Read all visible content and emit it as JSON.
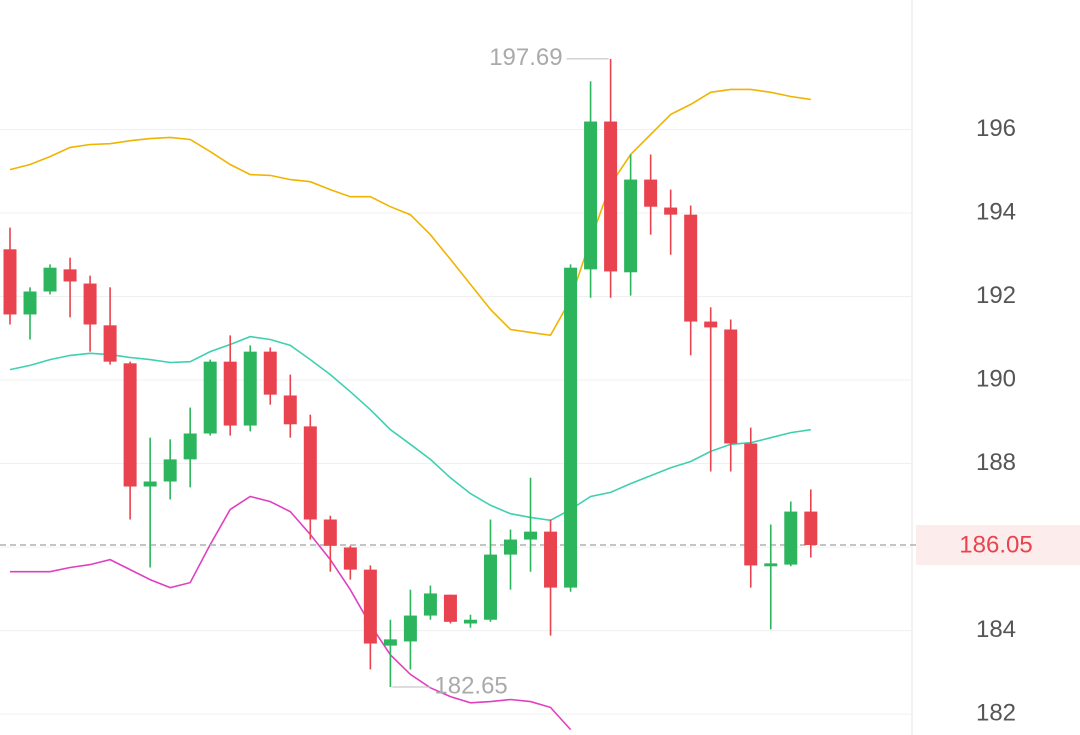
{
  "chart_data": {
    "type": "candlestick",
    "ylim": [
      181.5,
      199.1
    ],
    "yticks": [
      182,
      184,
      186,
      188,
      190,
      192,
      194,
      196
    ],
    "grid": true,
    "up_color": "#2db55d",
    "down_color": "#e8434f",
    "open": [
      193.13,
      191.57,
      192.12,
      192.65,
      192.31,
      191.31,
      190.4,
      187.45,
      187.57,
      188.1,
      188.72,
      190.44,
      188.91,
      190.68,
      189.63,
      188.89,
      186.66,
      185.99,
      185.46,
      183.64,
      183.74,
      184.36,
      184.86,
      184.17,
      184.26,
      185.82,
      186.18,
      186.37,
      185.03,
      192.65,
      196.19,
      192.58,
      194.8,
      194.13,
      193.96,
      191.4,
      191.21,
      188.48,
      185.54,
      185.58,
      186.85
    ],
    "high": [
      193.65,
      192.22,
      192.77,
      192.93,
      192.5,
      192.22,
      190.44,
      188.62,
      188.58,
      189.34,
      190.49,
      191.07,
      190.83,
      190.78,
      190.13,
      189.17,
      186.75,
      186.03,
      185.56,
      184.26,
      184.98,
      185.08,
      184.86,
      184.38,
      186.66,
      186.42,
      187.66,
      186.66,
      192.77,
      197.15,
      197.69,
      195.4,
      195.4,
      194.56,
      194.18,
      191.74,
      191.45,
      188.86,
      186.54,
      187.09,
      187.38
    ],
    "low": [
      191.33,
      190.97,
      192.05,
      191.5,
      190.68,
      190.37,
      186.66,
      185.51,
      187.14,
      187.43,
      188.67,
      188.67,
      188.77,
      189.41,
      188.62,
      186.18,
      185.41,
      185.22,
      183.07,
      182.65,
      183.07,
      184.26,
      184.17,
      184.07,
      184.21,
      184.98,
      185.41,
      183.88,
      184.93,
      191.97,
      191.97,
      192.02,
      193.48,
      193.0,
      190.59,
      187.81,
      187.81,
      185.03,
      184.03,
      185.54,
      185.75
    ],
    "close": [
      191.57,
      192.12,
      192.69,
      192.36,
      191.33,
      190.44,
      187.45,
      187.57,
      188.1,
      188.72,
      190.44,
      188.91,
      190.68,
      189.65,
      188.94,
      186.66,
      186.03,
      185.46,
      183.69,
      183.79,
      184.36,
      184.89,
      184.21,
      184.26,
      185.82,
      186.18,
      186.37,
      185.03,
      192.69,
      196.19,
      192.6,
      194.8,
      194.15,
      193.96,
      191.4,
      191.26,
      188.48,
      185.56,
      185.61,
      186.85,
      186.05
    ],
    "lines": [
      {
        "color": "#f0b400",
        "values": [
          195.04,
          195.16,
          195.35,
          195.57,
          195.64,
          195.66,
          195.73,
          195.78,
          195.81,
          195.76,
          195.47,
          195.16,
          194.92,
          194.9,
          194.8,
          194.75,
          194.56,
          194.39,
          194.39,
          194.15,
          193.96,
          193.48,
          192.89,
          192.29,
          191.69,
          191.21,
          191.14,
          191.07,
          191.93,
          193.36,
          194.68,
          195.4,
          195.88,
          196.36,
          196.6,
          196.89,
          196.96,
          196.96,
          196.89,
          196.79,
          196.72
        ]
      },
      {
        "color": "#3fd0b0",
        "values": [
          190.25,
          190.35,
          190.49,
          190.59,
          190.64,
          190.61,
          190.54,
          190.49,
          190.42,
          190.44,
          190.68,
          190.85,
          191.04,
          190.97,
          190.83,
          190.49,
          190.13,
          189.72,
          189.29,
          188.81,
          188.46,
          188.1,
          187.66,
          187.28,
          187.0,
          186.8,
          186.71,
          186.64,
          186.9,
          187.21,
          187.31,
          187.52,
          187.71,
          187.9,
          188.05,
          188.29,
          188.46,
          188.5,
          188.62,
          188.74,
          188.81
        ]
      },
      {
        "color": "#e040c0",
        "values": [
          185.41,
          185.41,
          185.41,
          185.51,
          185.58,
          185.7,
          185.46,
          185.22,
          185.03,
          185.15,
          186.06,
          186.9,
          187.21,
          187.09,
          186.85,
          186.3,
          185.7,
          184.98,
          184.14,
          183.42,
          182.95,
          182.63,
          182.42,
          182.27,
          182.3,
          182.35,
          182.3,
          182.16,
          181.63,
          null,
          null,
          null,
          null,
          null,
          null,
          null,
          null,
          null,
          null,
          null,
          null
        ]
      }
    ],
    "high_annotation": 197.69,
    "low_annotation": 182.65,
    "last_price": 186.05,
    "last_price_color": "#e8434f"
  }
}
